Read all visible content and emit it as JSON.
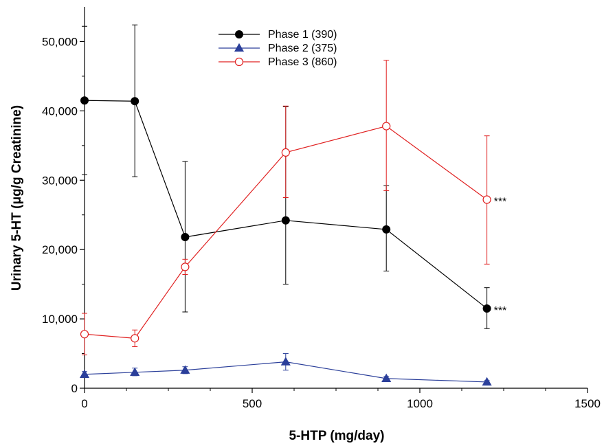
{
  "chart_data": {
    "type": "line",
    "title": "",
    "xlabel": "5-HTP (mg/day)",
    "ylabel": "Urinary 5-HT (μg/g Creatinine)",
    "xlim": [
      0,
      1500
    ],
    "ylim": [
      0,
      55000
    ],
    "x_ticks": [
      0,
      500,
      1000,
      1500
    ],
    "x_tick_labels": [
      "0",
      "500",
      "1000",
      "1500"
    ],
    "y_ticks": [
      0,
      10000,
      20000,
      30000,
      40000,
      50000
    ],
    "y_tick_labels": [
      "0",
      "10,000",
      "20,000",
      "30,000",
      "40,000",
      "50,000"
    ],
    "grid": false,
    "legend_position": "top-center",
    "series": [
      {
        "name": "Phase 1 (390)",
        "color": "#000000",
        "marker": "filled-circle",
        "x": [
          0,
          150,
          300,
          600,
          900,
          1200
        ],
        "y": [
          41500,
          41400,
          21800,
          24200,
          22900,
          11500
        ],
        "error_upper": [
          52200,
          52400,
          32700,
          40600,
          29200,
          14500
        ],
        "error_lower": [
          30800,
          30500,
          11000,
          15000,
          16900,
          8600
        ],
        "annotations": [
          {
            "x": 1200,
            "text": "***"
          }
        ]
      },
      {
        "name": "Phase 2 (375)",
        "color": "#2b3f9a",
        "marker": "filled-triangle",
        "x": [
          0,
          150,
          300,
          600,
          900,
          1200
        ],
        "y": [
          2000,
          2300,
          2600,
          3800,
          1400,
          900
        ],
        "error_upper": [
          2400,
          2900,
          3100,
          5000,
          1700,
          1100
        ],
        "error_lower": [
          1700,
          1800,
          2100,
          2600,
          1100,
          700
        ],
        "annotations": []
      },
      {
        "name": "Phase 3 (860)",
        "color": "#e02020",
        "marker": "open-circle",
        "x": [
          0,
          150,
          300,
          600,
          900,
          1200
        ],
        "y": [
          7800,
          7200,
          17500,
          34000,
          37800,
          27200
        ],
        "error_upper": [
          10800,
          8400,
          18600,
          40700,
          47300,
          36400
        ],
        "error_lower": [
          4800,
          6000,
          16400,
          27500,
          28500,
          17900
        ],
        "annotations": [
          {
            "x": 1200,
            "text": "***"
          }
        ]
      }
    ]
  }
}
